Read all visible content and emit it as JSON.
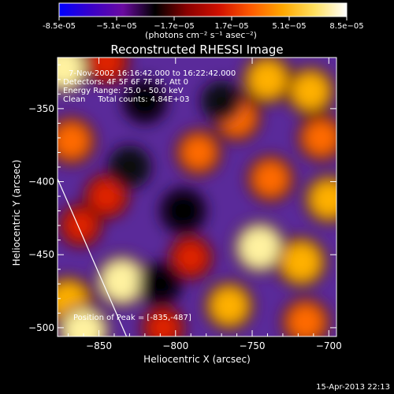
{
  "colorbar": {
    "ticks": [
      "-8.5e-05",
      "−5.1e−05",
      "−1.7e−05",
      "1.7e−05",
      "5.1e−05",
      "8.5e−05"
    ],
    "unit_label": "(photons cm⁻² s⁻¹ asec⁻²)",
    "colors": [
      "#0000ff",
      "#3a00c8",
      "#6a0aa0",
      "#000000",
      "#8a0000",
      "#d01000",
      "#ff5a00",
      "#ffa800",
      "#ffe060",
      "#ffffff"
    ]
  },
  "chart_data": {
    "type": "heatmap",
    "title": "Reconstructed RHESSI Image",
    "xlabel": "Heliocentric X (arcsec)",
    "ylabel": "Heliocentric Y (arcsec)",
    "xlim": [
      -877,
      -695
    ],
    "ylim": [
      -506,
      -315
    ],
    "xticks": [
      -850,
      -800,
      -750,
      -700
    ],
    "xtick_labels": [
      "−850",
      "−800",
      "−750",
      "−700"
    ],
    "yticks": [
      -350,
      -400,
      -450,
      -500
    ],
    "ytick_labels": [
      "−350",
      "−400",
      "−450",
      "−500"
    ],
    "zlim": [
      -8.5e-05,
      8.5e-05
    ],
    "annotations": [
      "7-Nov-2002 16:16:42.000 to 16:22:42.000",
      "Detectors: 4F 5F 6F 7F 8F, Att 0",
      "Energy Range: 25.0 - 50.0 keV",
      "Clean     Total counts: 4.84E+03"
    ],
    "peak_label": "Position of Peak = [-835,-487]",
    "limb_line": [
      [
        -877,
        -398
      ],
      [
        -832,
        -506
      ]
    ],
    "blobs": [
      {
        "x": -873,
        "y": -322,
        "v": 1.0
      },
      {
        "x": -845,
        "y": -318,
        "v": 0.6
      },
      {
        "x": -740,
        "y": -330,
        "v": 0.85
      },
      {
        "x": -712,
        "y": -338,
        "v": 0.8
      },
      {
        "x": -760,
        "y": -356,
        "v": 0.75
      },
      {
        "x": -705,
        "y": -370,
        "v": 0.7
      },
      {
        "x": -868,
        "y": -372,
        "v": 0.75
      },
      {
        "x": -785,
        "y": -380,
        "v": 0.65
      },
      {
        "x": -738,
        "y": -398,
        "v": 0.7
      },
      {
        "x": -700,
        "y": -412,
        "v": 0.8
      },
      {
        "x": -845,
        "y": -410,
        "v": 0.6
      },
      {
        "x": -862,
        "y": -430,
        "v": 0.5
      },
      {
        "x": -745,
        "y": -445,
        "v": 1.0
      },
      {
        "x": -718,
        "y": -455,
        "v": 0.9
      },
      {
        "x": -790,
        "y": -452,
        "v": 0.55
      },
      {
        "x": -835,
        "y": -468,
        "v": 1.0
      },
      {
        "x": -870,
        "y": -482,
        "v": 0.9
      },
      {
        "x": -860,
        "y": -502,
        "v": 1.0
      },
      {
        "x": -765,
        "y": -485,
        "v": 0.8
      },
      {
        "x": -715,
        "y": -496,
        "v": 0.75
      },
      {
        "x": -808,
        "y": -500,
        "v": 0.5
      },
      {
        "x": -820,
        "y": -345,
        "v": -0.6
      },
      {
        "x": -795,
        "y": -420,
        "v": -0.7
      },
      {
        "x": -830,
        "y": -390,
        "v": -0.5
      },
      {
        "x": -810,
        "y": -470,
        "v": -0.55
      },
      {
        "x": -770,
        "y": -345,
        "v": -0.4
      }
    ]
  },
  "footer": {
    "date": "15-Apr-2013 22:13"
  }
}
